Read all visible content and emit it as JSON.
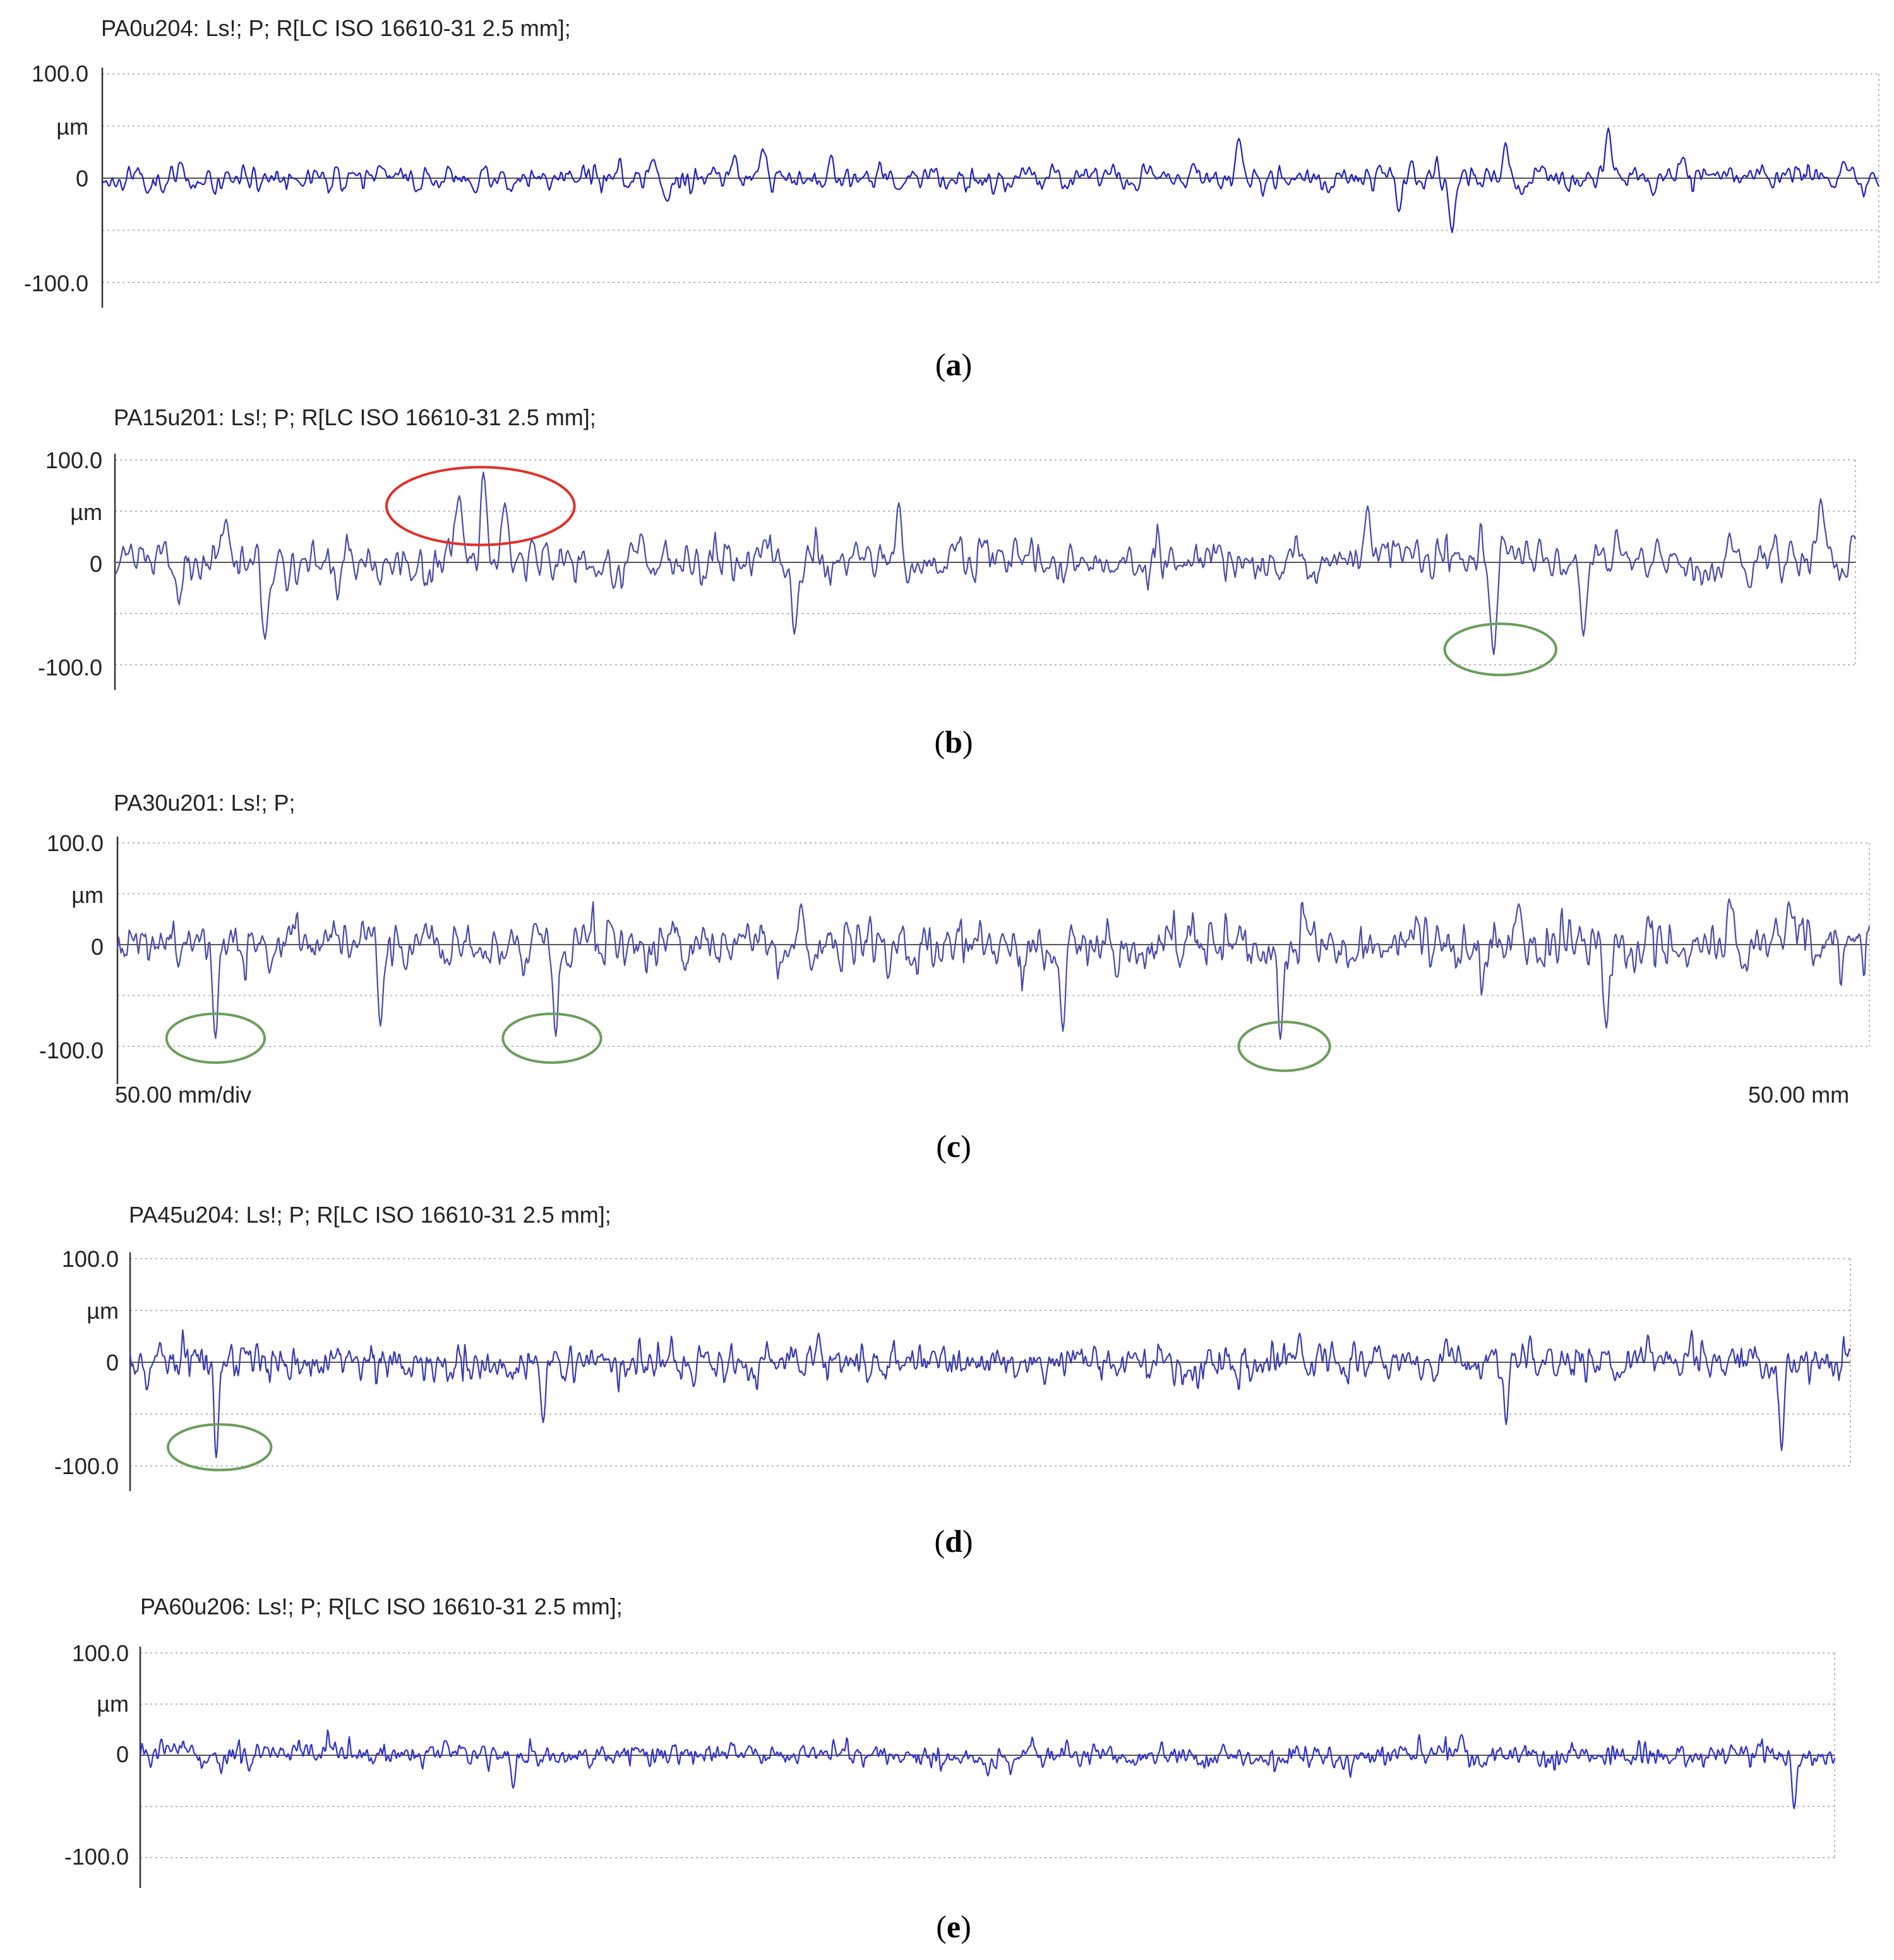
{
  "chart_data": [
    {
      "type": "line",
      "panel": "a",
      "caption_letter": "a",
      "title": "PA0u204: Ls!; P; R[LC ISO 16610-31 2.5 mm];",
      "ylabel": "µm",
      "yticks": [
        "100.0",
        "µm",
        "0",
        "",
        "-100.0"
      ],
      "ylim": [
        -100,
        100
      ],
      "xlim": [
        0,
        50
      ],
      "grid": true,
      "line_color": "#2020c0",
      "profile": {
        "seed": 11,
        "noise": 7,
        "sharp": 0.25,
        "n": 1400
      },
      "features": [
        {
          "x": 7.8,
          "y": 12
        },
        {
          "x": 15.5,
          "y": 18
        },
        {
          "x": 10.5,
          "y": -14
        },
        {
          "x": 15.9,
          "y": -22
        },
        {
          "x": 18.6,
          "y": 28
        },
        {
          "x": 17.8,
          "y": 22
        },
        {
          "x": 30.7,
          "y": 14
        },
        {
          "x": 32.0,
          "y": 38
        },
        {
          "x": 36.5,
          "y": -32
        },
        {
          "x": 38.0,
          "y": -52
        },
        {
          "x": 39.5,
          "y": 34
        },
        {
          "x": 42.4,
          "y": 48
        },
        {
          "x": 44.5,
          "y": 20
        },
        {
          "x": 49.0,
          "y": 16
        },
        {
          "x": 20.5,
          "y": 22
        }
      ],
      "xlabel_left": "",
      "xlabel_right": "",
      "ellipses": []
    },
    {
      "type": "line",
      "panel": "b",
      "caption_letter": "b",
      "title": "PA15u201: Ls!; P; R[LC ISO 16610-31 2.5 mm];",
      "ylabel": "µm",
      "yticks": [
        "100.0",
        "µm",
        "0",
        "",
        "-100.0"
      ],
      "ylim": [
        -100,
        100
      ],
      "xlim": [
        0,
        50
      ],
      "grid": true,
      "line_color": "#4a4aa8",
      "profile": {
        "seed": 23,
        "noise": 12,
        "sharp": 0.6,
        "n": 1300
      },
      "features": [
        {
          "x": 3.2,
          "y": 42
        },
        {
          "x": 4.3,
          "y": -75
        },
        {
          "x": 9.9,
          "y": 65
        },
        {
          "x": 10.6,
          "y": 88
        },
        {
          "x": 11.2,
          "y": 58
        },
        {
          "x": 36.0,
          "y": 55
        },
        {
          "x": 39.6,
          "y": -90
        },
        {
          "x": 42.2,
          "y": -72
        },
        {
          "x": 49.0,
          "y": 62
        },
        {
          "x": 19.5,
          "y": -70
        },
        {
          "x": 22.5,
          "y": 58
        }
      ],
      "xlabel_left": "",
      "xlabel_right": "",
      "ellipses": [
        {
          "color": "#e0302a",
          "cx": 10.5,
          "cy": 55,
          "rx": 2.7,
          "ry": 38
        },
        {
          "color": "#6a9e5a",
          "cx": 39.8,
          "cy": -85,
          "rx": 1.6,
          "ry": 25
        }
      ]
    },
    {
      "type": "line",
      "panel": "c",
      "caption_letter": "c",
      "title": "PA30u201: Ls!; P;",
      "ylabel": "µm",
      "yticks": [
        "100.0",
        "µm",
        "0",
        "",
        "-100.0"
      ],
      "ylim": [
        -100,
        100
      ],
      "xlim": [
        0,
        50
      ],
      "grid": true,
      "line_color": "#4a4aa8",
      "profile": {
        "seed": 37,
        "noise": 13,
        "sharp": 0.7,
        "n": 1500
      },
      "features": [
        {
          "x": 2.8,
          "y": -92
        },
        {
          "x": 12.5,
          "y": -90
        },
        {
          "x": 33.2,
          "y": -93
        },
        {
          "x": 7.5,
          "y": -80
        },
        {
          "x": 27.0,
          "y": -85
        },
        {
          "x": 40.0,
          "y": 40
        },
        {
          "x": 42.5,
          "y": -82
        },
        {
          "x": 19.5,
          "y": 40
        },
        {
          "x": 46.0,
          "y": 45
        },
        {
          "x": 47.7,
          "y": 42
        }
      ],
      "xlabel_left": "50.00 mm/div",
      "xlabel_right": "50.00 mm",
      "ellipses": [
        {
          "color": "#6a9e5a",
          "cx": 2.8,
          "cy": -92,
          "rx": 1.4,
          "ry": 24
        },
        {
          "color": "#6a9e5a",
          "cx": 12.4,
          "cy": -92,
          "rx": 1.4,
          "ry": 24
        },
        {
          "color": "#6a9e5a",
          "cx": 33.3,
          "cy": -100,
          "rx": 1.3,
          "ry": 24
        }
      ]
    },
    {
      "type": "line",
      "panel": "d",
      "caption_letter": "d",
      "title": "PA45u204: Ls!; P; R[LC ISO 16610-31 2.5 mm];",
      "ylabel": "µm",
      "yticks": [
        "100.0",
        "µm",
        "0",
        "",
        "-100.0"
      ],
      "ylim": [
        -100,
        100
      ],
      "xlim": [
        0,
        50
      ],
      "grid": true,
      "line_color": "#3a3ab0",
      "profile": {
        "seed": 51,
        "noise": 9,
        "sharp": 0.55,
        "n": 1800
      },
      "features": [
        {
          "x": 2.5,
          "y": -92
        },
        {
          "x": 12.0,
          "y": -58
        },
        {
          "x": 48.0,
          "y": -85
        },
        {
          "x": 40.0,
          "y": -60
        },
        {
          "x": 20.0,
          "y": 28
        },
        {
          "x": 34.0,
          "y": 28
        }
      ],
      "xlabel_left": "",
      "xlabel_right": "",
      "ellipses": [
        {
          "color": "#6a9e5a",
          "cx": 2.6,
          "cy": -82,
          "rx": 1.5,
          "ry": 22
        }
      ]
    },
    {
      "type": "line",
      "panel": "e",
      "caption_letter": "e",
      "title": "PA60u206: Ls!; P; R[LC ISO 16610-31 2.5 mm];",
      "ylabel": "µm",
      "yticks": [
        "100.0",
        "µm",
        "0",
        "",
        "-100.0"
      ],
      "ylim": [
        -100,
        100
      ],
      "xlim": [
        0,
        50
      ],
      "grid": true,
      "line_color": "#3030c8",
      "profile": {
        "seed": 67,
        "noise": 6,
        "sharp": 0.35,
        "n": 1800
      },
      "features": [
        {
          "x": 11.0,
          "y": -32
        },
        {
          "x": 39.0,
          "y": 20
        },
        {
          "x": 48.8,
          "y": -52
        },
        {
          "x": 9.0,
          "y": 14
        },
        {
          "x": 25.0,
          "y": -20
        }
      ],
      "xlabel_left": "",
      "xlabel_right": "",
      "ellipses": []
    }
  ]
}
